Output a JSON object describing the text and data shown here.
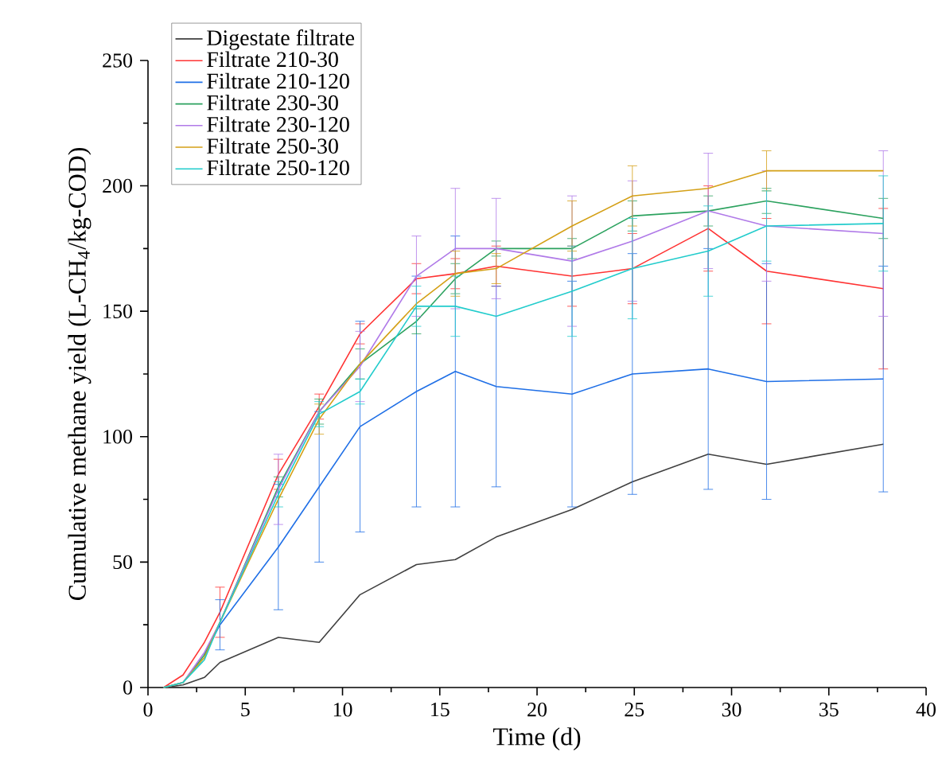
{
  "chart_data": {
    "type": "line",
    "xlabel": "Time (d)",
    "ylabel": "Cumulative methane yield (L-CH$_{4}$/kg-COD)",
    "xlim": [
      0,
      40
    ],
    "ylim": [
      0,
      250
    ],
    "xticks": [
      0,
      5,
      10,
      15,
      20,
      25,
      30,
      35,
      40
    ],
    "yticks": [
      0,
      50,
      100,
      150,
      200,
      250
    ],
    "grid": false,
    "legend": "top left",
    "marker": "none",
    "line_style": "solid",
    "x": [
      0.8,
      1.8,
      2.9,
      3.7,
      6.7,
      8.8,
      10.9,
      13.8,
      15.8,
      17.9,
      21.8,
      24.9,
      28.8,
      31.8,
      37.8
    ],
    "series": [
      {
        "name": "Digestate filtrate",
        "color": "#404040",
        "values": [
          0,
          1,
          4,
          10,
          20,
          18,
          37,
          49,
          51,
          60,
          71,
          82,
          93,
          89,
          97
        ]
      },
      {
        "name": "Filtrate 210-30",
        "color": "#ff3333",
        "values": [
          0,
          5,
          18,
          30,
          85,
          112,
          141,
          163,
          165,
          168,
          164,
          167,
          183,
          166,
          159
        ],
        "errors": [
          null,
          null,
          null,
          10,
          6,
          5,
          4,
          6,
          6,
          8,
          12,
          14,
          17,
          21,
          32
        ]
      },
      {
        "name": "Filtrate 210-120",
        "color": "#1f6fe6",
        "values": [
          null,
          null,
          13,
          25,
          56,
          80,
          104,
          118,
          126,
          120,
          117,
          125,
          127,
          122,
          123
        ],
        "errors": [
          null,
          null,
          null,
          10,
          25,
          30,
          42,
          46,
          54,
          40,
          45,
          48,
          48,
          47,
          45
        ]
      },
      {
        "name": "Filtrate 230-30",
        "color": "#2ca25f",
        "values": [
          0,
          2,
          13,
          26,
          80,
          110,
          129,
          146,
          163,
          175,
          175,
          188,
          190,
          194,
          187
        ],
        "errors": [
          null,
          null,
          null,
          null,
          4,
          5,
          6,
          5,
          6,
          3,
          4,
          6,
          6,
          5,
          8
        ]
      },
      {
        "name": "Filtrate 230-120",
        "color": "#b07ae8",
        "values": [
          0,
          2,
          14,
          26,
          79,
          110,
          128,
          164,
          175,
          175,
          170,
          178,
          190,
          184,
          181
        ],
        "errors": [
          null,
          null,
          null,
          null,
          14,
          null,
          14,
          16,
          24,
          20,
          26,
          24,
          23,
          22,
          33
        ]
      },
      {
        "name": "Filtrate 250-30",
        "color": "#d4a017",
        "values": [
          0,
          2,
          12,
          26,
          75,
          107,
          129,
          153,
          165,
          167,
          184,
          196,
          199,
          206,
          206
        ],
        "errors": [
          null,
          null,
          null,
          null,
          null,
          6,
          null,
          null,
          9,
          6,
          10,
          12,
          null,
          8,
          null
        ]
      },
      {
        "name": "Filtrate 250-120",
        "color": "#22cccc",
        "values": [
          0,
          2,
          11,
          26,
          77,
          109,
          118,
          152,
          152,
          148,
          158,
          167,
          174,
          184,
          185
        ],
        "errors": [
          null,
          null,
          null,
          null,
          5,
          5,
          5,
          8,
          12,
          null,
          18,
          20,
          18,
          14,
          19
        ]
      }
    ]
  }
}
